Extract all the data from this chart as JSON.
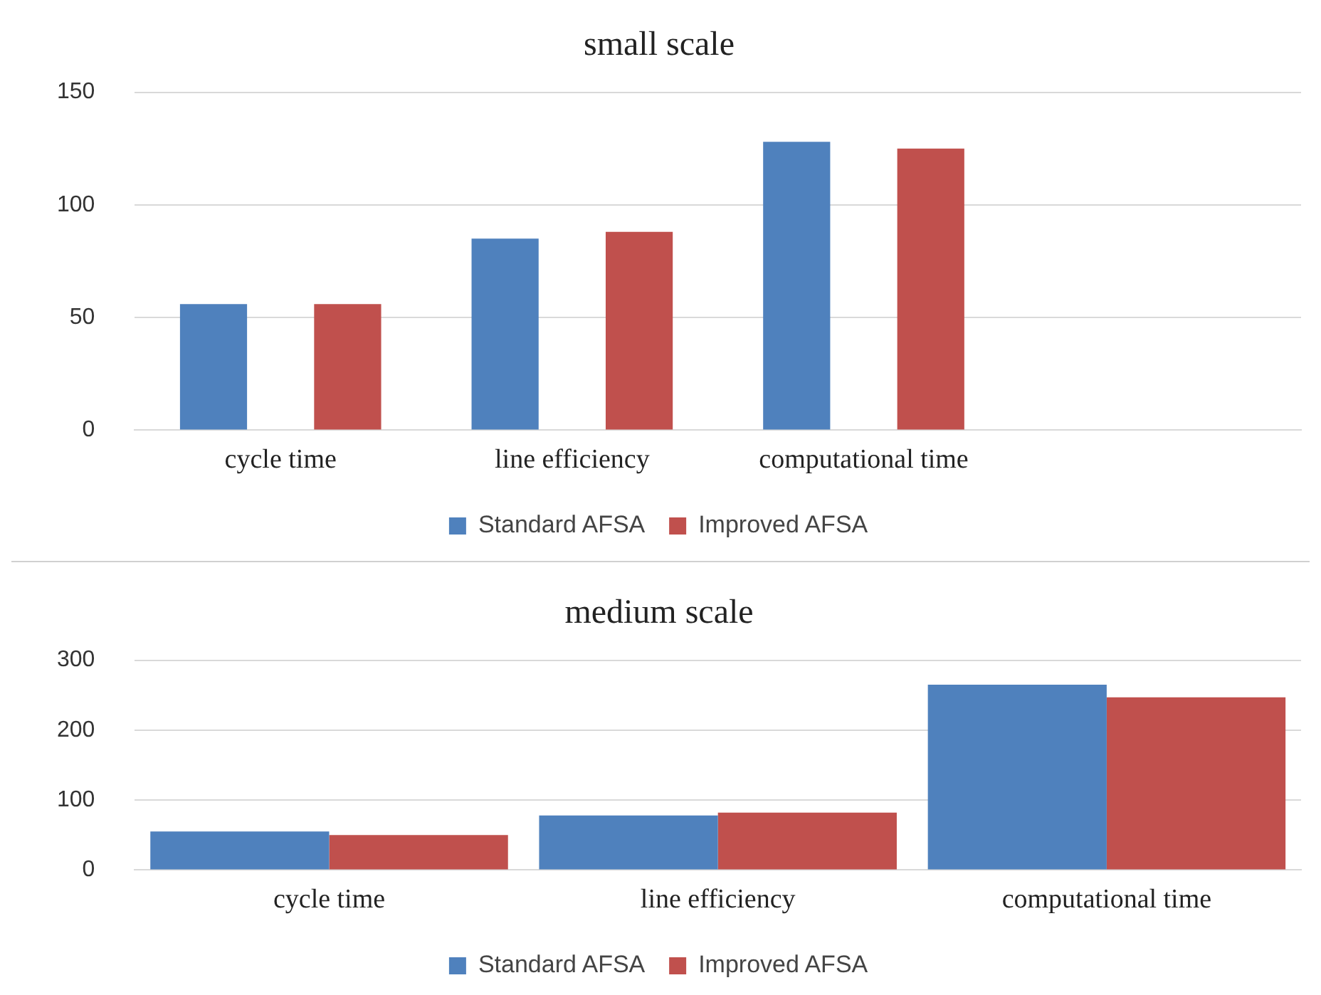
{
  "chart_data": [
    {
      "type": "bar",
      "title": "small scale",
      "categories": [
        "cycle time",
        "line efficiency",
        "computational time",
        null
      ],
      "series": [
        {
          "name": "Standard AFSA",
          "color": "#4f81bd",
          "values": [
            56,
            85,
            128,
            null
          ]
        },
        {
          "name": "Improved AFSA",
          "color": "#c0504d",
          "values": [
            56,
            88,
            125,
            null
          ]
        }
      ],
      "ylim": [
        0,
        150
      ],
      "yticks": [
        0,
        50,
        100,
        150
      ],
      "grid": "y",
      "legend": "bottom"
    },
    {
      "type": "bar",
      "title": "medium scale",
      "categories": [
        "cycle time",
        "line efficiency",
        "computational time"
      ],
      "series": [
        {
          "name": "Standard AFSA",
          "color": "#4f81bd",
          "values": [
            55,
            78,
            265
          ]
        },
        {
          "name": "Improved AFSA",
          "color": "#c0504d",
          "values": [
            50,
            82,
            247
          ]
        }
      ],
      "ylim": [
        0,
        300
      ],
      "yticks": [
        0,
        100,
        200,
        300
      ],
      "grid": "y",
      "legend": "bottom"
    }
  ]
}
